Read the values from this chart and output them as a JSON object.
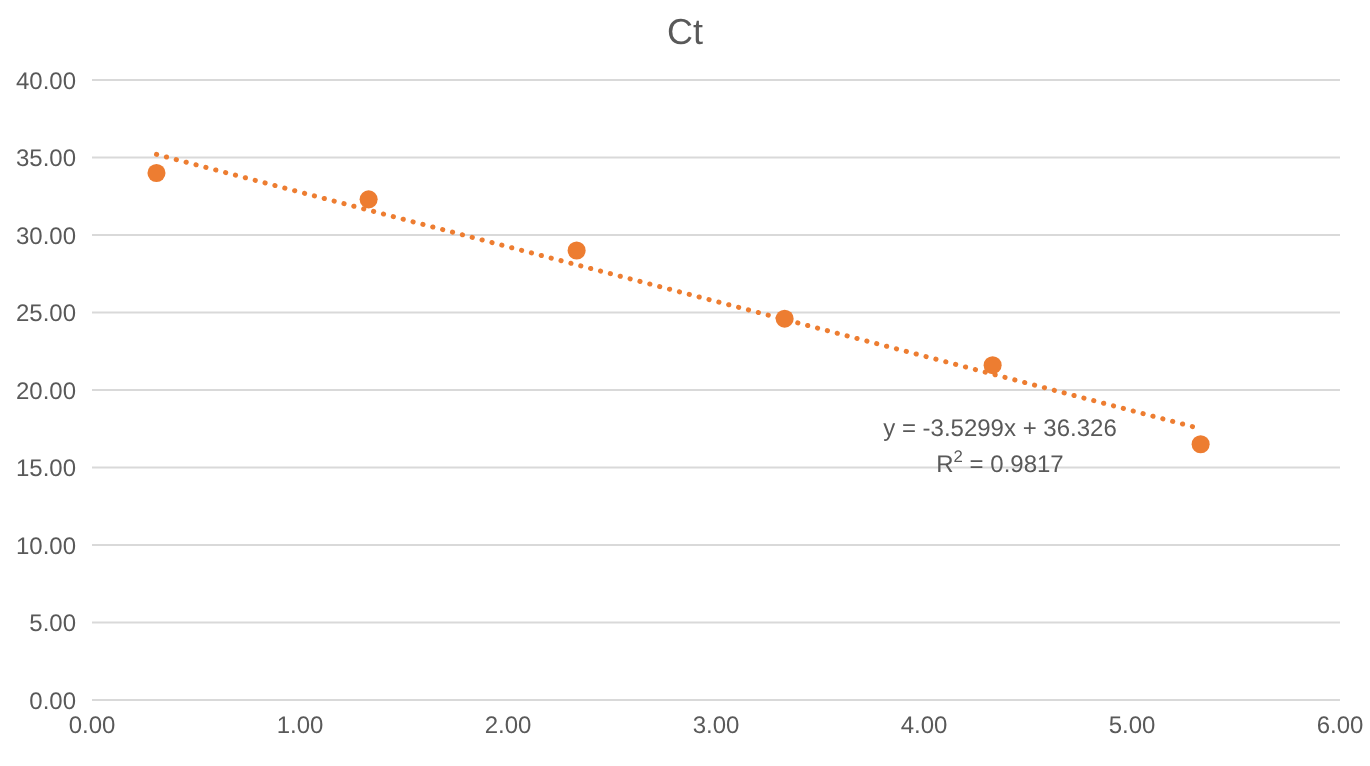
{
  "chart_data": {
    "type": "scatter",
    "title": "Ct",
    "series": [
      {
        "color": "#ed7d31",
        "marker": "circle",
        "x": [
          0.31,
          1.33,
          2.33,
          3.33,
          4.33,
          5.33
        ],
        "values": [
          34.0,
          32.3,
          29.0,
          24.6,
          21.6,
          16.5
        ]
      },
      {
        "type": "line",
        "color": "#ed7d31",
        "marker": "none",
        "line_style": "dotted",
        "x": [
          0.31,
          5.33
        ],
        "values": [
          35.2,
          17.5
        ]
      }
    ],
    "xlim": [
      0,
      6
    ],
    "xticks": [
      {
        "value": 0,
        "label": "0.00"
      },
      {
        "value": 1,
        "label": "1.00"
      },
      {
        "value": 2,
        "label": "2.00"
      },
      {
        "value": 3,
        "label": "3.00"
      },
      {
        "value": 4,
        "label": "4.00"
      },
      {
        "value": 5,
        "label": "5.00"
      },
      {
        "value": 6,
        "label": "6.00"
      }
    ],
    "ylim": [
      0,
      40
    ],
    "yticks": [
      {
        "value": 0,
        "label": "0.00"
      },
      {
        "value": 5,
        "label": "5.00"
      },
      {
        "value": 10,
        "label": "10.00"
      },
      {
        "value": 15,
        "label": "15.00"
      },
      {
        "value": 20,
        "label": "20.00"
      },
      {
        "value": 25,
        "label": "25.00"
      },
      {
        "value": 30,
        "label": "30.00"
      },
      {
        "value": 35,
        "label": "35.00"
      },
      {
        "value": 40,
        "label": "40.00"
      }
    ],
    "grid": "y",
    "annotations": [
      "y = -3.5299x + 36.326",
      "R$^{2}$ = 0.9817"
    ]
  }
}
